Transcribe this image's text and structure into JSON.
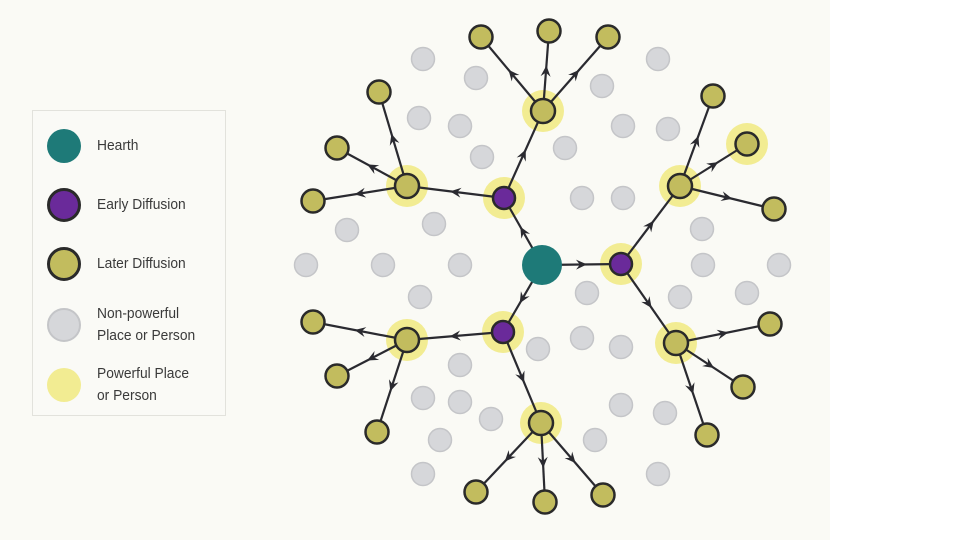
{
  "legend": {
    "items": [
      {
        "label": "Hearth",
        "color": "#1e7a78"
      },
      {
        "label": "Early Diffusion",
        "color": "#6a2a9a"
      },
      {
        "label": "Later Diffusion",
        "color": "#c2bc5e"
      },
      {
        "label": "Non-powerful Place or Person",
        "line1": "Non-powerful",
        "line2": "Place or Person",
        "color": "#d6d7da"
      },
      {
        "label": "Powerful Place or Person",
        "line1": "Powerful Place",
        "line2": "or Person",
        "color": "#f2ec92"
      }
    ]
  },
  "colors": {
    "background": "#fafaf5",
    "edge": "#2a2a30",
    "outline": "#2a2a2a"
  }
}
